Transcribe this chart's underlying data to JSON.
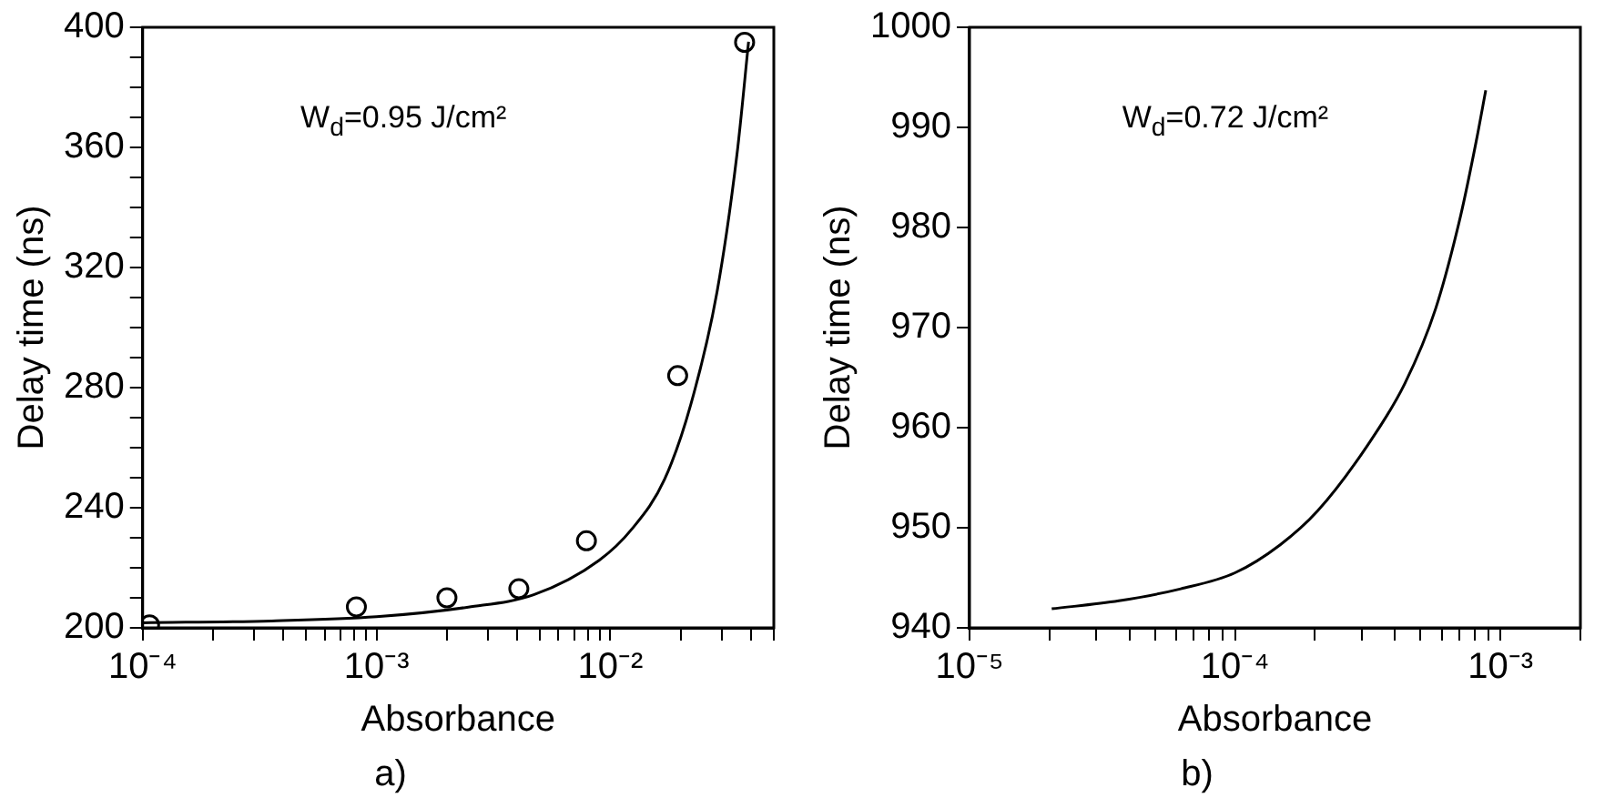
{
  "chart_data": [
    {
      "type": "scatter",
      "title": "a)",
      "xlabel": "Absorbance",
      "ylabel": "Delay time (ns)",
      "annotations": [
        "W$_{d}$=0.95  J/cm²"
      ],
      "log": "x",
      "marker": "circle",
      "xlim": [
        0.0001,
        0.05
      ],
      "xticks": [
        {
          "value": 0.0001,
          "label": "10⁻⁴"
        },
        {
          "value": 0.0002,
          "label": null
        },
        {
          "value": 0.0003,
          "label": null
        },
        {
          "value": 0.0004,
          "label": null
        },
        {
          "value": 0.0005,
          "label": null
        },
        {
          "value": 0.0006,
          "label": null
        },
        {
          "value": 0.0007,
          "label": null
        },
        {
          "value": 0.0008,
          "label": null
        },
        {
          "value": 0.0009,
          "label": null
        },
        {
          "value": 0.001,
          "label": "10⁻³"
        },
        {
          "value": 0.002,
          "label": null
        },
        {
          "value": 0.003,
          "label": null
        },
        {
          "value": 0.004,
          "label": null
        },
        {
          "value": 0.005,
          "label": null
        },
        {
          "value": 0.006,
          "label": null
        },
        {
          "value": 0.007,
          "label": null
        },
        {
          "value": 0.008,
          "label": null
        },
        {
          "value": 0.009,
          "label": null
        },
        {
          "value": 0.01,
          "label": "10⁻²"
        },
        {
          "value": 0.02,
          "label": null
        },
        {
          "value": 0.03,
          "label": null
        },
        {
          "value": 0.04,
          "label": null
        },
        {
          "value": 0.05,
          "label": null
        }
      ],
      "ylim": [
        200,
        400
      ],
      "yticks": [
        200,
        {
          "value": 210,
          "label": null
        },
        {
          "value": 220,
          "label": null
        },
        {
          "value": 230,
          "label": null
        },
        240,
        {
          "value": 250,
          "label": null
        },
        {
          "value": 260,
          "label": null
        },
        {
          "value": 270,
          "label": null
        },
        280,
        {
          "value": 290,
          "label": null
        },
        {
          "value": 300,
          "label": null
        },
        {
          "value": 310,
          "label": null
        },
        320,
        {
          "value": 330,
          "label": null
        },
        {
          "value": 340,
          "label": null
        },
        {
          "value": 350,
          "label": null
        },
        360,
        {
          "value": 370,
          "label": null
        },
        {
          "value": 380,
          "label": null
        },
        {
          "value": 390,
          "label": null
        },
        400
      ],
      "series": [
        {
          "color": "#000000",
          "x": [
            0.000107,
            0.00082,
            0.002,
            0.00406,
            0.0079,
            0.0194,
            0.0375
          ],
          "values": [
            201,
            207,
            210,
            213,
            229,
            284,
            395
          ]
        },
        {
          "type": "line",
          "marker": "none",
          "color": "#000000",
          "x": [
            0.0001,
            0.000356,
            0.001,
            0.00247,
            0.0047,
            0.00896,
            0.01236,
            0.01706,
            0.0221,
            0.0286,
            0.0348,
            0.039
          ],
          "values": [
            201.7,
            202.3,
            203.7,
            206.9,
            211,
            222.5,
            232.9,
            249.5,
            274.5,
            312,
            357.8,
            395.2
          ]
        }
      ]
    },
    {
      "type": "line",
      "title": "b)",
      "xlabel": "Absorbance",
      "ylabel": "Delay time (ns)",
      "annotations": [
        "W$_{d}$=0.72  J/cm²"
      ],
      "log": "x",
      "xlim": [
        1e-05,
        0.002
      ],
      "xticks": [
        {
          "value": 1e-05,
          "label": "10⁻⁵"
        },
        {
          "value": 2e-05,
          "label": null
        },
        {
          "value": 3e-05,
          "label": null
        },
        {
          "value": 4e-05,
          "label": null
        },
        {
          "value": 5e-05,
          "label": null
        },
        {
          "value": 6e-05,
          "label": null
        },
        {
          "value": 7e-05,
          "label": null
        },
        {
          "value": 8e-05,
          "label": null
        },
        {
          "value": 9e-05,
          "label": null
        },
        {
          "value": 0.0001,
          "label": "10⁻⁴"
        },
        {
          "value": 0.0002,
          "label": null
        },
        {
          "value": 0.0003,
          "label": null
        },
        {
          "value": 0.0004,
          "label": null
        },
        {
          "value": 0.0005,
          "label": null
        },
        {
          "value": 0.0006,
          "label": null
        },
        {
          "value": 0.0007,
          "label": null
        },
        {
          "value": 0.0008,
          "label": null
        },
        {
          "value": 0.0009,
          "label": null
        },
        {
          "value": 0.001,
          "label": "10⁻³"
        },
        {
          "value": 0.002,
          "label": null
        }
      ],
      "ylim": [
        940,
        1000
      ],
      "yticks": [
        940,
        950,
        960,
        970,
        980,
        990,
        1000
      ],
      "series": [
        {
          "color": "#000000",
          "x": [
            2.04e-05,
            3.65e-05,
            6.25e-05,
            0.0001,
            0.000148,
            0.000205,
            0.000315,
            0.000436,
            0.00057,
            0.000708,
            0.00081,
            0.00088
          ],
          "values": [
            941.9,
            942.7,
            943.9,
            945.5,
            948.3,
            951.7,
            958.2,
            964.4,
            971.9,
            981.2,
            988.6,
            993.7
          ]
        }
      ]
    }
  ]
}
